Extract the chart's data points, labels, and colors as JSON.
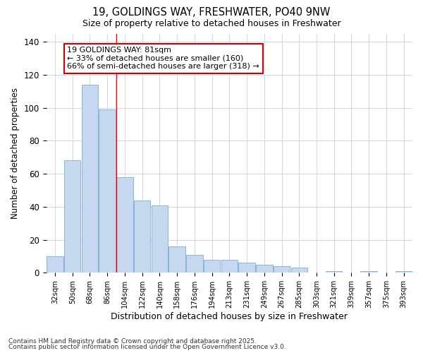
{
  "title1": "19, GOLDINGS WAY, FRESHWATER, PO40 9NW",
  "title2": "Size of property relative to detached houses in Freshwater",
  "xlabel": "Distribution of detached houses by size in Freshwater",
  "ylabel": "Number of detached properties",
  "categories": [
    "32sqm",
    "50sqm",
    "68sqm",
    "86sqm",
    "104sqm",
    "122sqm",
    "140sqm",
    "158sqm",
    "176sqm",
    "194sqm",
    "213sqm",
    "231sqm",
    "249sqm",
    "267sqm",
    "285sqm",
    "303sqm",
    "321sqm",
    "339sqm",
    "357sqm",
    "375sqm",
    "393sqm"
  ],
  "values": [
    10,
    68,
    114,
    99,
    58,
    44,
    41,
    16,
    11,
    8,
    8,
    6,
    5,
    4,
    3,
    0,
    1,
    0,
    1,
    0,
    1
  ],
  "bar_color": "#c5d8f0",
  "bar_edge_color": "#7aadd4",
  "background_color": "#ffffff",
  "grid_color": "#d0d8e8",
  "ylim": [
    0,
    145
  ],
  "yticks": [
    0,
    20,
    40,
    60,
    80,
    100,
    120,
    140
  ],
  "annotation_line1": "19 GOLDINGS WAY: 81sqm",
  "annotation_line2": "← 33% of detached houses are smaller (160)",
  "annotation_line3": "66% of semi-detached houses are larger (318) →",
  "redline_x": 3.5,
  "annotation_box_facecolor": "#ffffff",
  "annotation_box_edgecolor": "#cc0000",
  "footer1": "Contains HM Land Registry data © Crown copyright and database right 2025.",
  "footer2": "Contains public sector information licensed under the Open Government Licence v3.0."
}
